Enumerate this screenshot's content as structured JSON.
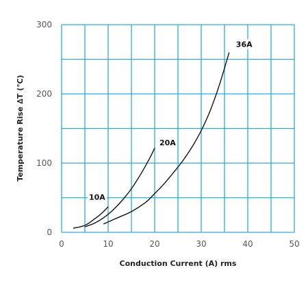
{
  "chart_data": {
    "type": "line",
    "xlabel": "Conduction Current (A) rms",
    "ylabel": "Temperature Rise ∆T (℃)",
    "xlim": [
      0,
      50
    ],
    "ylim": [
      0,
      300
    ],
    "x_ticks": [
      0,
      10,
      20,
      30,
      40,
      50
    ],
    "y_ticks": [
      0,
      100,
      200,
      300
    ],
    "x_grid_step": 5,
    "y_grid_step": 50,
    "grid": true,
    "grid_color": "#29abe2",
    "line_color": "#111111",
    "series": [
      {
        "name": "10A",
        "x": [
          2.5,
          4,
          5,
          6,
          7,
          8,
          9,
          10
        ],
        "y": [
          6,
          8,
          10,
          14,
          19,
          24,
          30,
          37
        ]
      },
      {
        "name": "20A",
        "x": [
          5,
          7,
          9,
          11,
          13,
          15,
          17,
          19,
          20
        ],
        "y": [
          8,
          13,
          21,
          32,
          46,
          63,
          84,
          108,
          122
        ]
      },
      {
        "name": "36A",
        "x": [
          9,
          12,
          15,
          18,
          20,
          22,
          24,
          26,
          28,
          30,
          32,
          34,
          36
        ],
        "y": [
          12,
          21,
          30,
          43,
          56,
          70,
          86,
          103,
          123,
          147,
          177,
          215,
          260
        ]
      }
    ]
  }
}
